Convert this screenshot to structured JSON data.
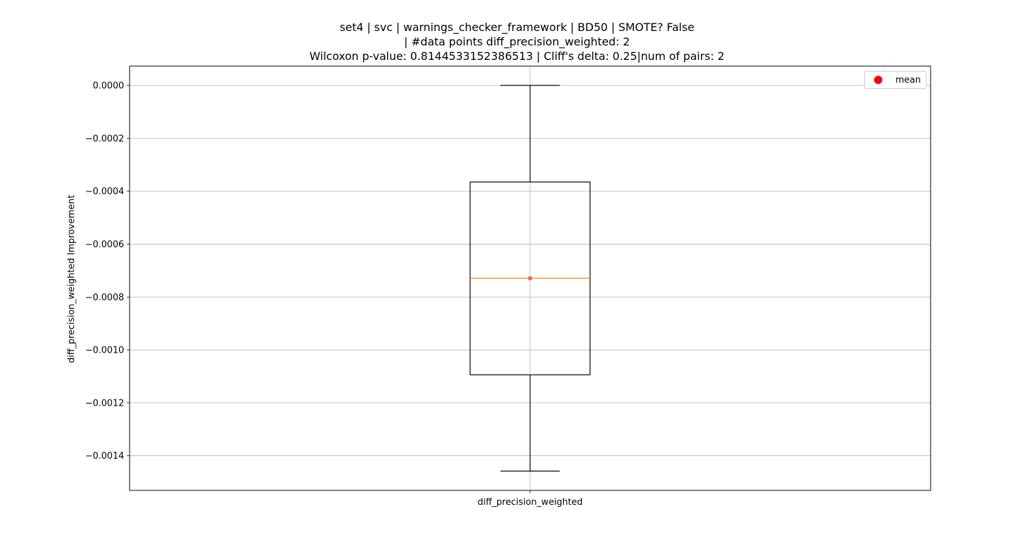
{
  "chart_data": {
    "type": "box",
    "title_lines": [
      "set4 | svc | warnings_checker_framework | BD50 | SMOTE? False",
      "| #data points diff_precision_weighted: 2",
      "Wilcoxon p-value: 0.8144533152386513 | Cliff's delta: 0.25|num of pairs: 2"
    ],
    "xlabel": "",
    "ylabel": "diff_precision_weighted Improvement",
    "categories": [
      "diff_precision_weighted"
    ],
    "boxes": [
      {
        "name": "diff_precision_weighted",
        "whisker_low": -0.001458,
        "q1": -0.001094,
        "median": -0.000729,
        "q3": -0.000365,
        "whisker_high": 0.0,
        "mean": -0.000729
      }
    ],
    "ylim": [
      -0.001531,
      7.3e-05
    ],
    "yticks": [
      0.0,
      -0.0002,
      -0.0004,
      -0.0006,
      -0.0008,
      -0.001,
      -0.0012,
      -0.0014
    ],
    "ytick_labels": [
      "0.0000",
      "−0.0002",
      "−0.0004",
      "−0.0006",
      "−0.0008",
      "−0.0010",
      "−0.0012",
      "−0.0014"
    ],
    "grid": true,
    "legend": {
      "placement": "top-right",
      "entries": [
        {
          "label": "mean",
          "marker": "circle",
          "color": "#ff0000"
        }
      ]
    },
    "colors": {
      "median": "#ff7f0e",
      "box": "#000000",
      "grid": "#b0b0b0",
      "mean": "#ff0000"
    }
  }
}
